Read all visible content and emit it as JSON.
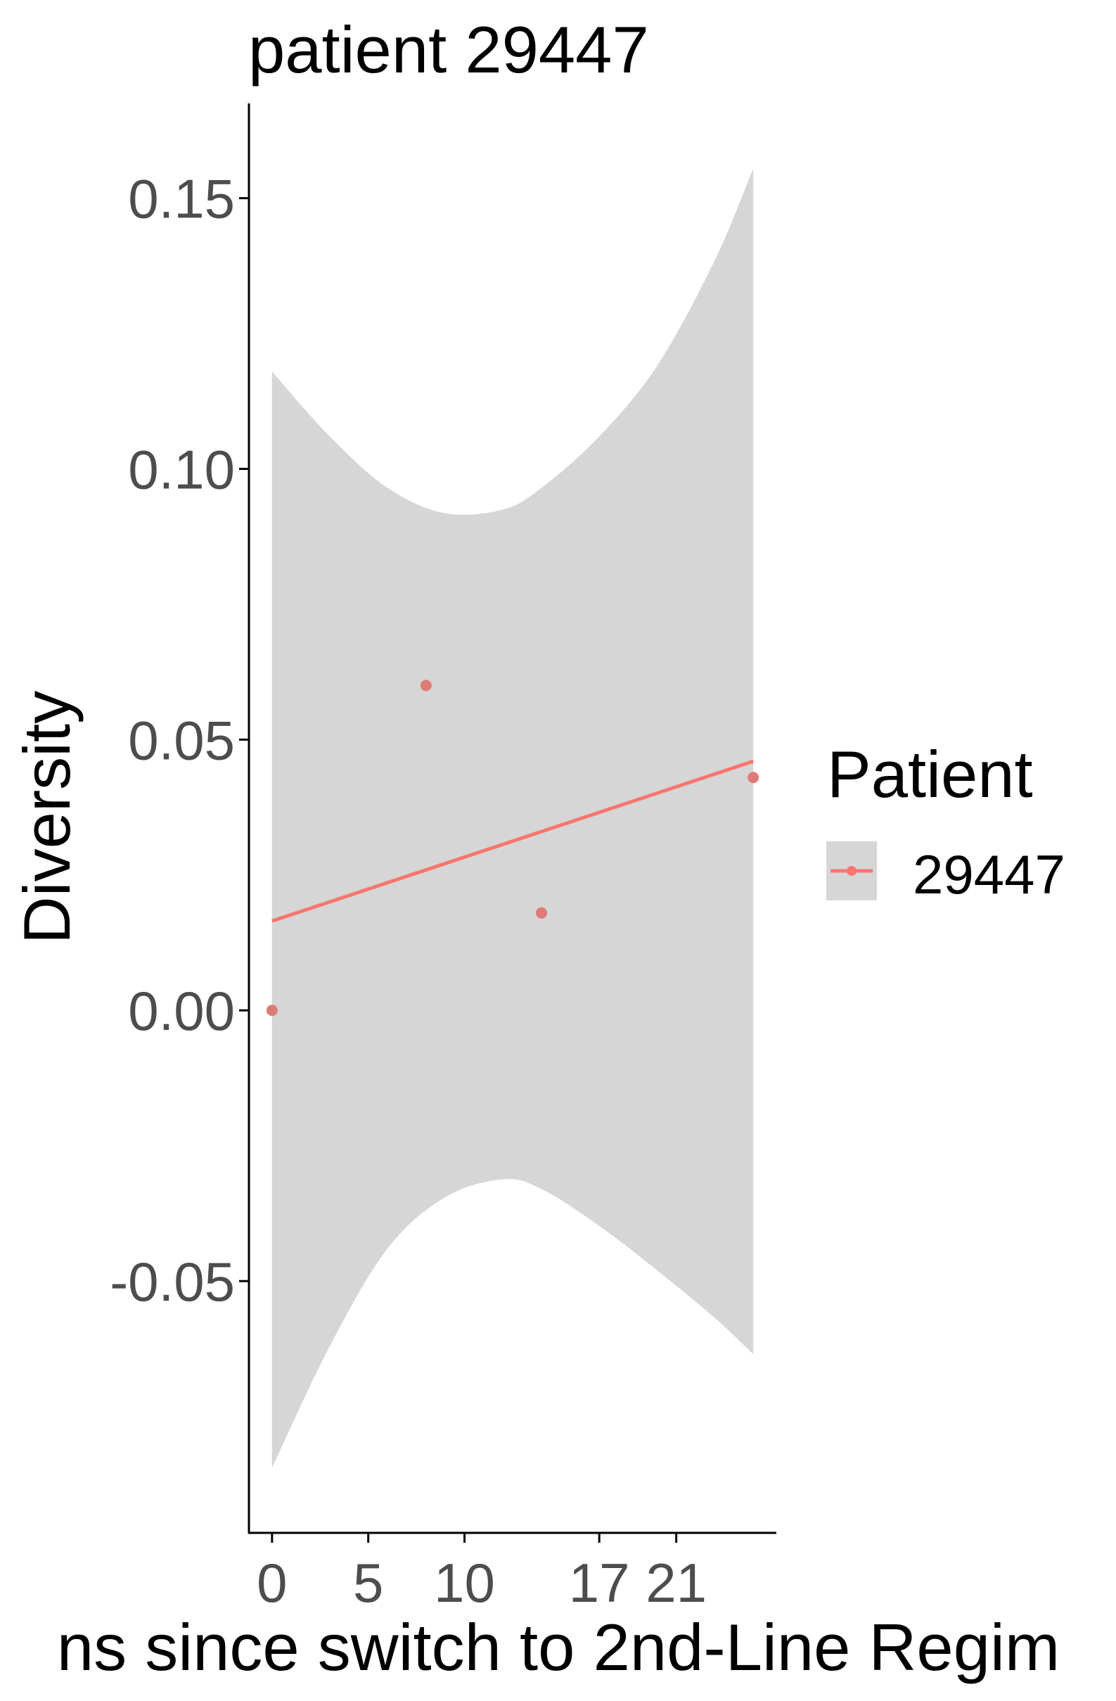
{
  "chart_data": {
    "type": "scatter",
    "title": "patient 29447",
    "xlabel": "ns since switch to 2nd-Line Regim",
    "ylabel": "Diversity",
    "xlim": [
      -1.2,
      26.2
    ],
    "ylim": [
      -0.0965,
      0.1675
    ],
    "x_ticks": [
      0,
      5,
      10,
      17,
      21
    ],
    "y_ticks": [
      -0.05,
      0.0,
      0.05,
      0.1,
      0.15
    ],
    "y_tick_labels": [
      "-0.05",
      "0.00",
      "0.05",
      "0.10",
      "0.15"
    ],
    "grid": false,
    "legend": {
      "title": "Patient",
      "placement": "right"
    },
    "series": [
      {
        "name": "29447",
        "color": "#f8766d",
        "points": [
          {
            "x": 0,
            "y": 0.0
          },
          {
            "x": 8,
            "y": 0.06
          },
          {
            "x": 14,
            "y": 0.018
          },
          {
            "x": 25,
            "y": 0.043
          }
        ],
        "fit": {
          "method": "lm",
          "line": [
            {
              "x": 0,
              "y": 0.0165
            },
            {
              "x": 25,
              "y": 0.046
            }
          ],
          "band": [
            {
              "x": 0,
              "lower": -0.0845,
              "upper": 0.118
            },
            {
              "x": 3,
              "lower": -0.062,
              "upper": 0.106
            },
            {
              "x": 6,
              "lower": -0.044,
              "upper": 0.0965
            },
            {
              "x": 9,
              "lower": -0.0345,
              "upper": 0.0918
            },
            {
              "x": 12,
              "lower": -0.0312,
              "upper": 0.0925
            },
            {
              "x": 14,
              "lower": -0.033,
              "upper": 0.0965
            },
            {
              "x": 17,
              "lower": -0.0398,
              "upper": 0.106
            },
            {
              "x": 20,
              "lower": -0.048,
              "upper": 0.119
            },
            {
              "x": 23,
              "lower": -0.0568,
              "upper": 0.1385
            },
            {
              "x": 25,
              "lower": -0.0635,
              "upper": 0.1555
            }
          ]
        }
      }
    ],
    "colors": {
      "band": "#d6d6d6",
      "point": "#dd7c76",
      "axis": "#000000",
      "tick_label": "#4d4d4d"
    }
  }
}
